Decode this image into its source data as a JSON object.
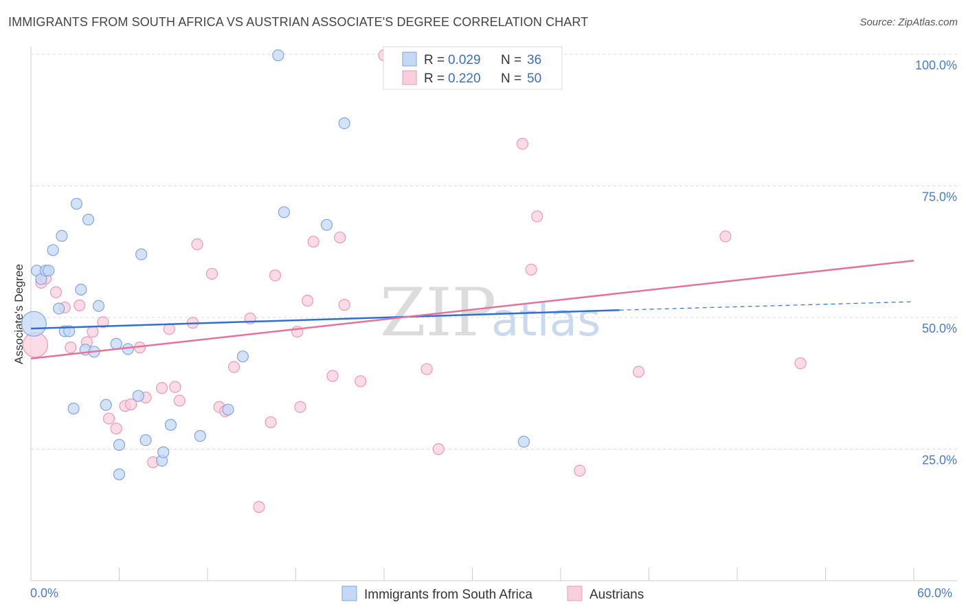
{
  "title": "IMMIGRANTS FROM SOUTH AFRICA VS AUSTRIAN ASSOCIATE'S DEGREE CORRELATION CHART",
  "source": "Source: ZipAtlas.com",
  "watermark": {
    "part1": "ZIP",
    "part2": "atlas"
  },
  "colors": {
    "blue_fill": "#c5d8f5",
    "blue_stroke": "#7fa6de",
    "blue_line": "#2e6fd1",
    "pink_fill": "#f9cfdc",
    "pink_stroke": "#ec9ab5",
    "pink_line": "#e5729a",
    "tick_text": "#4a7cc8",
    "grid": "#d9d9d9"
  },
  "stats": {
    "r_label": "R =",
    "n_label": "N =",
    "blue": {
      "r": "0.029",
      "n": "36"
    },
    "pink": {
      "r": "0.220",
      "n": "50"
    }
  },
  "chart_data": {
    "type": "scatter",
    "title": "IMMIGRANTS FROM SOUTH AFRICA VS AUSTRIAN ASSOCIATE'S DEGREE CORRELATION CHART",
    "xlabel": "",
    "ylabel": "Associate's Degree",
    "xlim": [
      0,
      60
    ],
    "ylim": [
      0,
      100
    ],
    "x_tick_labels": [
      "0.0%",
      "60.0%"
    ],
    "y_ticks": [
      25,
      50,
      75,
      100
    ],
    "y_tick_labels": [
      "25.0%",
      "50.0%",
      "75.0%",
      "100.0%"
    ],
    "grid": true,
    "legend_position": "bottom-center",
    "series": [
      {
        "name": "Immigrants from South Africa",
        "color": "blue",
        "trend": {
          "x_start": 0,
          "y_start": 47.9,
          "x_end": 40,
          "y_end": 51.4,
          "dashed_to_x": 60,
          "dashed_to_y": 53.0
        },
        "points": [
          {
            "x": 0.2,
            "y": 48.8,
            "big": true
          },
          {
            "x": 0.4,
            "y": 58.9
          },
          {
            "x": 0.7,
            "y": 57.3
          },
          {
            "x": 1.0,
            "y": 58.9
          },
          {
            "x": 1.2,
            "y": 58.9
          },
          {
            "x": 1.5,
            "y": 62.8
          },
          {
            "x": 1.9,
            "y": 51.7
          },
          {
            "x": 2.1,
            "y": 65.5
          },
          {
            "x": 2.3,
            "y": 47.4
          },
          {
            "x": 2.6,
            "y": 47.4
          },
          {
            "x": 2.9,
            "y": 32.7
          },
          {
            "x": 3.1,
            "y": 71.6
          },
          {
            "x": 3.4,
            "y": 55.3
          },
          {
            "x": 3.7,
            "y": 43.9
          },
          {
            "x": 3.9,
            "y": 68.6
          },
          {
            "x": 4.3,
            "y": 43.5
          },
          {
            "x": 4.6,
            "y": 52.2
          },
          {
            "x": 5.1,
            "y": 33.4
          },
          {
            "x": 5.8,
            "y": 45.0
          },
          {
            "x": 6.0,
            "y": 25.8
          },
          {
            "x": 6.0,
            "y": 20.2
          },
          {
            "x": 6.6,
            "y": 44.0
          },
          {
            "x": 7.3,
            "y": 35.1
          },
          {
            "x": 7.5,
            "y": 62.0
          },
          {
            "x": 7.8,
            "y": 26.7
          },
          {
            "x": 8.9,
            "y": 22.8
          },
          {
            "x": 9.0,
            "y": 24.4
          },
          {
            "x": 9.5,
            "y": 29.6
          },
          {
            "x": 11.5,
            "y": 27.5
          },
          {
            "x": 13.4,
            "y": 32.5
          },
          {
            "x": 14.4,
            "y": 42.6
          },
          {
            "x": 16.8,
            "y": 99.8
          },
          {
            "x": 17.2,
            "y": 70.0
          },
          {
            "x": 20.1,
            "y": 67.6
          },
          {
            "x": 21.3,
            "y": 86.9
          },
          {
            "x": 33.5,
            "y": 26.4
          }
        ]
      },
      {
        "name": "Austrians",
        "color": "pink",
        "trend": {
          "x_start": 0,
          "y_start": 42.2,
          "x_end": 60,
          "y_end": 60.8
        },
        "points": [
          {
            "x": 0.3,
            "y": 44.8,
            "big": true
          },
          {
            "x": 0.7,
            "y": 56.6
          },
          {
            "x": 1.0,
            "y": 57.4
          },
          {
            "x": 1.7,
            "y": 54.8
          },
          {
            "x": 2.3,
            "y": 51.9
          },
          {
            "x": 2.7,
            "y": 44.3
          },
          {
            "x": 3.3,
            "y": 52.3
          },
          {
            "x": 3.8,
            "y": 45.3
          },
          {
            "x": 4.2,
            "y": 47.3
          },
          {
            "x": 4.9,
            "y": 49.1
          },
          {
            "x": 5.3,
            "y": 30.8
          },
          {
            "x": 5.8,
            "y": 28.9
          },
          {
            "x": 6.4,
            "y": 33.2
          },
          {
            "x": 6.8,
            "y": 33.5
          },
          {
            "x": 7.4,
            "y": 44.3
          },
          {
            "x": 7.8,
            "y": 34.8
          },
          {
            "x": 8.3,
            "y": 22.5
          },
          {
            "x": 8.9,
            "y": 36.6
          },
          {
            "x": 9.4,
            "y": 47.8
          },
          {
            "x": 9.8,
            "y": 36.8
          },
          {
            "x": 10.1,
            "y": 34.2
          },
          {
            "x": 11.0,
            "y": 49.0
          },
          {
            "x": 11.3,
            "y": 63.9
          },
          {
            "x": 12.3,
            "y": 58.3
          },
          {
            "x": 12.8,
            "y": 33.0
          },
          {
            "x": 13.2,
            "y": 32.2
          },
          {
            "x": 13.8,
            "y": 40.6
          },
          {
            "x": 14.9,
            "y": 49.8
          },
          {
            "x": 15.5,
            "y": 14.0
          },
          {
            "x": 16.3,
            "y": 30.1
          },
          {
            "x": 16.6,
            "y": 58.0
          },
          {
            "x": 18.1,
            "y": 47.3
          },
          {
            "x": 18.3,
            "y": 33.0
          },
          {
            "x": 18.8,
            "y": 53.2
          },
          {
            "x": 19.2,
            "y": 64.4
          },
          {
            "x": 20.5,
            "y": 38.9
          },
          {
            "x": 21.0,
            "y": 65.2
          },
          {
            "x": 21.3,
            "y": 52.4
          },
          {
            "x": 22.4,
            "y": 37.9
          },
          {
            "x": 24.0,
            "y": 99.8
          },
          {
            "x": 26.9,
            "y": 40.2
          },
          {
            "x": 27.2,
            "y": 99.6
          },
          {
            "x": 27.7,
            "y": 25.0
          },
          {
            "x": 33.4,
            "y": 83.0
          },
          {
            "x": 34.0,
            "y": 59.1
          },
          {
            "x": 34.4,
            "y": 69.2
          },
          {
            "x": 37.3,
            "y": 20.9
          },
          {
            "x": 41.3,
            "y": 39.7
          },
          {
            "x": 47.2,
            "y": 65.4
          },
          {
            "x": 52.3,
            "y": 41.3
          }
        ]
      }
    ]
  }
}
